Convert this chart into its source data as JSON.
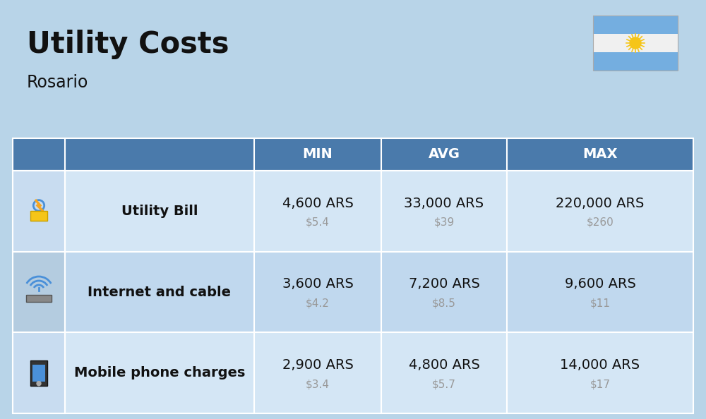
{
  "title": "Utility Costs",
  "subtitle": "Rosario",
  "background_color": "#b8d4e8",
  "header_bg_color": "#4a7aab",
  "header_text_color": "#ffffff",
  "row_bg_color_odd": "#d4e6f5",
  "row_bg_color_even": "#c0d8ee",
  "icon_col_bg_odd": "#c8dcf0",
  "icon_col_bg_even": "#b4cce0",
  "col_headers": [
    "MIN",
    "AVG",
    "MAX"
  ],
  "rows": [
    {
      "label": "Utility Bill",
      "min_ars": "4,600 ARS",
      "min_usd": "$5.4",
      "avg_ars": "33,000 ARS",
      "avg_usd": "$39",
      "max_ars": "220,000 ARS",
      "max_usd": "$260"
    },
    {
      "label": "Internet and cable",
      "min_ars": "3,600 ARS",
      "min_usd": "$4.2",
      "avg_ars": "7,200 ARS",
      "avg_usd": "$8.5",
      "max_ars": "9,600 ARS",
      "max_usd": "$11"
    },
    {
      "label": "Mobile phone charges",
      "min_ars": "2,900 ARS",
      "min_usd": "$3.4",
      "avg_ars": "4,800 ARS",
      "avg_usd": "$5.7",
      "max_ars": "14,000 ARS",
      "max_usd": "$17"
    }
  ],
  "title_fontsize": 30,
  "subtitle_fontsize": 17,
  "header_fontsize": 14,
  "label_fontsize": 14,
  "value_fontsize": 14,
  "usd_fontsize": 11,
  "usd_color": "#999999",
  "flag_stripe_top": "#74aee0",
  "flag_stripe_mid": "#f0f0f0",
  "flag_stripe_bot": "#74aee0",
  "flag_sun_color": "#f5c518",
  "text_color": "#111111"
}
